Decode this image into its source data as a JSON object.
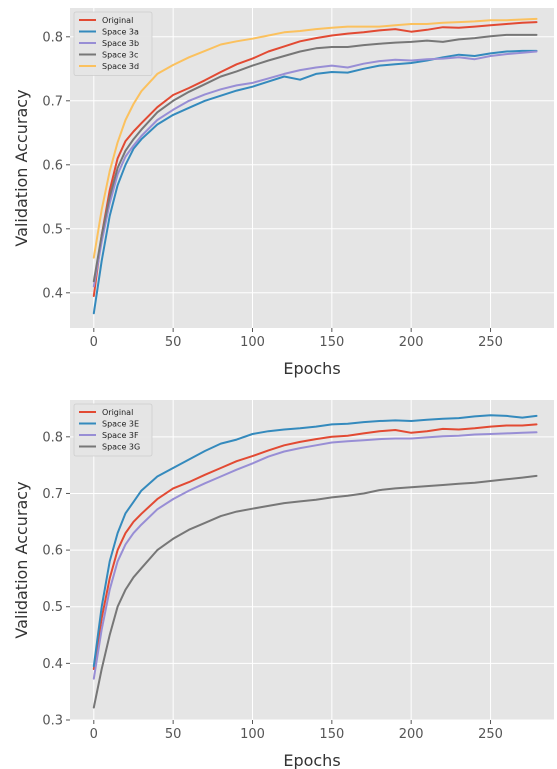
{
  "colors": {
    "background": "#ffffff",
    "plot_bg": "#e5e5e5",
    "grid": "#ffffff",
    "tick_text": "#555555",
    "axis_text": "#333333"
  },
  "chart_data": [
    {
      "type": "line",
      "title": "",
      "xlabel": "Epochs",
      "ylabel": "Validation Accuracy",
      "xlim": [
        -15,
        290
      ],
      "ylim": [
        0.345,
        0.845
      ],
      "xticks": [
        0,
        50,
        100,
        150,
        200,
        250
      ],
      "yticks": [
        0.4,
        0.5,
        0.6,
        0.7,
        0.8
      ],
      "xtick_labels": [
        "0",
        "50",
        "100",
        "150",
        "200",
        "250"
      ],
      "ytick_labels": [
        "0.4",
        "0.5",
        "0.6",
        "0.7",
        "0.8"
      ],
      "grid": true,
      "legend_position": "top-left",
      "series": [
        {
          "name": "Original",
          "color": "#e24a33",
          "x": [
            0,
            5,
            10,
            15,
            20,
            25,
            30,
            40,
            50,
            60,
            70,
            80,
            90,
            100,
            110,
            120,
            130,
            140,
            150,
            160,
            170,
            180,
            190,
            200,
            210,
            220,
            230,
            240,
            250,
            260,
            270,
            279
          ],
          "y": [
            0.395,
            0.49,
            0.56,
            0.61,
            0.637,
            0.652,
            0.665,
            0.69,
            0.709,
            0.72,
            0.732,
            0.745,
            0.757,
            0.766,
            0.777,
            0.785,
            0.793,
            0.798,
            0.802,
            0.805,
            0.807,
            0.81,
            0.812,
            0.808,
            0.811,
            0.815,
            0.814,
            0.816,
            0.818,
            0.82,
            0.822,
            0.823
          ]
        },
        {
          "name": "Space 3a",
          "color": "#348abd",
          "x": [
            0,
            5,
            10,
            15,
            20,
            25,
            30,
            40,
            50,
            60,
            70,
            80,
            90,
            100,
            110,
            120,
            130,
            140,
            150,
            160,
            170,
            180,
            190,
            200,
            210,
            220,
            230,
            240,
            250,
            260,
            270,
            279
          ],
          "y": [
            0.368,
            0.45,
            0.52,
            0.568,
            0.6,
            0.625,
            0.64,
            0.663,
            0.678,
            0.689,
            0.7,
            0.708,
            0.716,
            0.722,
            0.73,
            0.738,
            0.733,
            0.742,
            0.745,
            0.744,
            0.75,
            0.755,
            0.757,
            0.759,
            0.763,
            0.768,
            0.772,
            0.77,
            0.774,
            0.777,
            0.778,
            0.778
          ]
        },
        {
          "name": "Space 3b",
          "color": "#988ed5",
          "x": [
            0,
            5,
            10,
            15,
            20,
            25,
            30,
            40,
            50,
            60,
            70,
            80,
            90,
            100,
            110,
            120,
            130,
            140,
            150,
            160,
            170,
            180,
            190,
            200,
            210,
            220,
            230,
            240,
            250,
            260,
            270,
            279
          ],
          "y": [
            0.41,
            0.48,
            0.54,
            0.585,
            0.613,
            0.63,
            0.645,
            0.67,
            0.686,
            0.7,
            0.71,
            0.718,
            0.724,
            0.728,
            0.735,
            0.742,
            0.748,
            0.752,
            0.755,
            0.752,
            0.758,
            0.762,
            0.764,
            0.763,
            0.765,
            0.766,
            0.768,
            0.765,
            0.77,
            0.773,
            0.775,
            0.777
          ]
        },
        {
          "name": "Space 3c",
          "color": "#777777",
          "x": [
            0,
            5,
            10,
            15,
            20,
            25,
            30,
            40,
            50,
            60,
            70,
            80,
            90,
            100,
            110,
            120,
            130,
            140,
            150,
            160,
            170,
            180,
            190,
            200,
            210,
            220,
            230,
            240,
            250,
            260,
            270,
            279
          ],
          "y": [
            0.418,
            0.49,
            0.55,
            0.595,
            0.622,
            0.64,
            0.655,
            0.682,
            0.7,
            0.714,
            0.726,
            0.738,
            0.746,
            0.755,
            0.763,
            0.77,
            0.777,
            0.782,
            0.784,
            0.784,
            0.787,
            0.789,
            0.791,
            0.792,
            0.794,
            0.792,
            0.796,
            0.798,
            0.801,
            0.803,
            0.803,
            0.803
          ]
        },
        {
          "name": "Space 3d",
          "color": "#fbc15e",
          "x": [
            0,
            5,
            10,
            15,
            20,
            25,
            30,
            40,
            50,
            60,
            70,
            80,
            90,
            100,
            110,
            120,
            130,
            140,
            150,
            160,
            170,
            180,
            190,
            200,
            210,
            220,
            230,
            240,
            250,
            260,
            270,
            279
          ],
          "y": [
            0.455,
            0.53,
            0.59,
            0.635,
            0.67,
            0.695,
            0.715,
            0.742,
            0.756,
            0.768,
            0.778,
            0.788,
            0.793,
            0.797,
            0.802,
            0.807,
            0.809,
            0.812,
            0.814,
            0.816,
            0.816,
            0.816,
            0.818,
            0.82,
            0.82,
            0.822,
            0.823,
            0.824,
            0.826,
            0.826,
            0.827,
            0.828
          ]
        }
      ]
    },
    {
      "type": "line",
      "title": "",
      "xlabel": "Epochs",
      "ylabel": "Validation Accuracy",
      "xlim": [
        -15,
        290
      ],
      "ylim": [
        0.3,
        0.865
      ],
      "xticks": [
        0,
        50,
        100,
        150,
        200,
        250
      ],
      "yticks": [
        0.3,
        0.4,
        0.5,
        0.6,
        0.7,
        0.8
      ],
      "xtick_labels": [
        "0",
        "50",
        "100",
        "150",
        "200",
        "250"
      ],
      "ytick_labels": [
        "0.3",
        "0.4",
        "0.5",
        "0.6",
        "0.7",
        "0.8"
      ],
      "grid": true,
      "legend_position": "top-left",
      "series": [
        {
          "name": "Original",
          "color": "#e24a33",
          "x": [
            0,
            5,
            10,
            15,
            20,
            25,
            30,
            40,
            50,
            60,
            70,
            80,
            90,
            100,
            110,
            120,
            130,
            140,
            150,
            160,
            170,
            180,
            190,
            200,
            210,
            220,
            230,
            240,
            250,
            260,
            270,
            279
          ],
          "y": [
            0.39,
            0.48,
            0.55,
            0.6,
            0.63,
            0.65,
            0.664,
            0.69,
            0.709,
            0.72,
            0.733,
            0.745,
            0.757,
            0.766,
            0.776,
            0.785,
            0.791,
            0.796,
            0.8,
            0.802,
            0.806,
            0.81,
            0.812,
            0.807,
            0.81,
            0.814,
            0.813,
            0.815,
            0.818,
            0.82,
            0.82,
            0.822
          ]
        },
        {
          "name": "Space 3E",
          "color": "#348abd",
          "x": [
            0,
            5,
            10,
            15,
            20,
            25,
            30,
            40,
            50,
            60,
            70,
            80,
            90,
            100,
            110,
            120,
            130,
            140,
            150,
            160,
            170,
            180,
            190,
            200,
            210,
            220,
            230,
            240,
            250,
            260,
            270,
            279
          ],
          "y": [
            0.395,
            0.5,
            0.58,
            0.63,
            0.665,
            0.685,
            0.705,
            0.73,
            0.745,
            0.76,
            0.775,
            0.788,
            0.795,
            0.805,
            0.81,
            0.813,
            0.815,
            0.818,
            0.822,
            0.823,
            0.826,
            0.828,
            0.829,
            0.828,
            0.83,
            0.832,
            0.833,
            0.836,
            0.838,
            0.837,
            0.834,
            0.837
          ]
        },
        {
          "name": "Space 3F",
          "color": "#988ed5",
          "x": [
            0,
            5,
            10,
            15,
            20,
            25,
            30,
            40,
            50,
            60,
            70,
            80,
            90,
            100,
            110,
            120,
            130,
            140,
            150,
            160,
            170,
            180,
            190,
            200,
            210,
            220,
            230,
            240,
            250,
            260,
            270,
            279
          ],
          "y": [
            0.373,
            0.46,
            0.53,
            0.58,
            0.61,
            0.63,
            0.645,
            0.672,
            0.69,
            0.705,
            0.718,
            0.73,
            0.742,
            0.753,
            0.765,
            0.774,
            0.78,
            0.785,
            0.79,
            0.792,
            0.794,
            0.796,
            0.797,
            0.797,
            0.799,
            0.801,
            0.802,
            0.804,
            0.805,
            0.806,
            0.807,
            0.808
          ]
        },
        {
          "name": "Space 3G",
          "color": "#777777",
          "x": [
            0,
            5,
            10,
            15,
            20,
            25,
            30,
            40,
            50,
            60,
            70,
            80,
            90,
            100,
            110,
            120,
            130,
            140,
            150,
            160,
            170,
            180,
            190,
            200,
            210,
            220,
            230,
            240,
            250,
            260,
            270,
            279
          ],
          "y": [
            0.322,
            0.39,
            0.45,
            0.5,
            0.53,
            0.552,
            0.568,
            0.6,
            0.62,
            0.636,
            0.648,
            0.66,
            0.668,
            0.673,
            0.678,
            0.683,
            0.686,
            0.689,
            0.693,
            0.696,
            0.7,
            0.706,
            0.709,
            0.711,
            0.713,
            0.715,
            0.717,
            0.719,
            0.722,
            0.725,
            0.728,
            0.731
          ]
        }
      ]
    }
  ]
}
